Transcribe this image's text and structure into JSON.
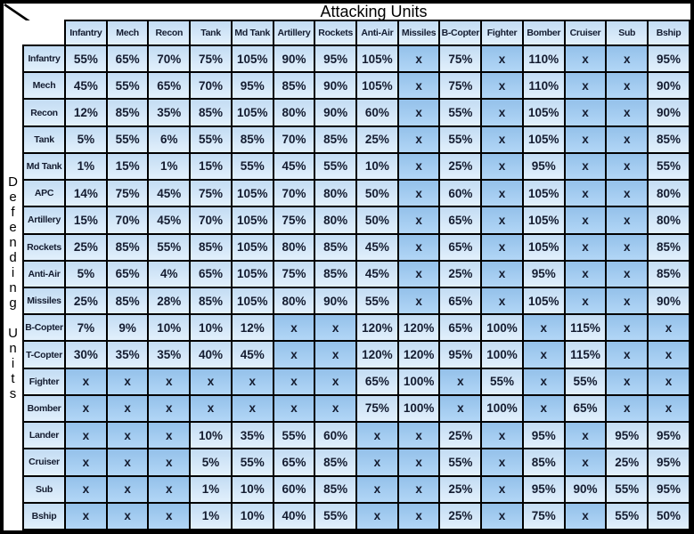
{
  "title": "Attacking Units",
  "side_label": "Defending Units",
  "no_attack_symbol": "x",
  "colors": {
    "frame_border": "#000000",
    "grid_line": "#000000",
    "cell_bg_top": "#c3dcf3",
    "cell_bg_bottom": "#e2f0fc",
    "x_cell_bg_top": "#94c1ea",
    "x_cell_bg_bottom": "#b2d6f6",
    "text": "#141c30",
    "background": "#ffffff"
  },
  "chart_data": {
    "type": "table",
    "title": "Attacking Units vs Defending Units damage chart",
    "columns": [
      "Infantry",
      "Mech",
      "Recon",
      "Tank",
      "Md Tank",
      "Artillery",
      "Rockets",
      "Anti-Air",
      "Missiles",
      "B-Copter",
      "Fighter",
      "Bomber",
      "Cruiser",
      "Sub",
      "Bship"
    ],
    "rows": [
      {
        "label": "Infantry",
        "values": [
          "55%",
          "65%",
          "70%",
          "75%",
          "105%",
          "90%",
          "95%",
          "105%",
          "x",
          "75%",
          "x",
          "110%",
          "x",
          "x",
          "95%"
        ]
      },
      {
        "label": "Mech",
        "values": [
          "45%",
          "55%",
          "65%",
          "70%",
          "95%",
          "85%",
          "90%",
          "105%",
          "x",
          "75%",
          "x",
          "110%",
          "x",
          "x",
          "90%"
        ]
      },
      {
        "label": "Recon",
        "values": [
          "12%",
          "85%",
          "35%",
          "85%",
          "105%",
          "80%",
          "90%",
          "60%",
          "x",
          "55%",
          "x",
          "105%",
          "x",
          "x",
          "90%"
        ]
      },
      {
        "label": "Tank",
        "values": [
          "5%",
          "55%",
          "6%",
          "55%",
          "85%",
          "70%",
          "85%",
          "25%",
          "x",
          "55%",
          "x",
          "105%",
          "x",
          "x",
          "85%"
        ]
      },
      {
        "label": "Md Tank",
        "values": [
          "1%",
          "15%",
          "1%",
          "15%",
          "55%",
          "45%",
          "55%",
          "10%",
          "x",
          "25%",
          "x",
          "95%",
          "x",
          "x",
          "55%"
        ]
      },
      {
        "label": "APC",
        "values": [
          "14%",
          "75%",
          "45%",
          "75%",
          "105%",
          "70%",
          "80%",
          "50%",
          "x",
          "60%",
          "x",
          "105%",
          "x",
          "x",
          "80%"
        ]
      },
      {
        "label": "Artillery",
        "values": [
          "15%",
          "70%",
          "45%",
          "70%",
          "105%",
          "75%",
          "80%",
          "50%",
          "x",
          "65%",
          "x",
          "105%",
          "x",
          "x",
          "80%"
        ]
      },
      {
        "label": "Rockets",
        "values": [
          "25%",
          "85%",
          "55%",
          "85%",
          "105%",
          "80%",
          "85%",
          "45%",
          "x",
          "65%",
          "x",
          "105%",
          "x",
          "x",
          "85%"
        ]
      },
      {
        "label": "Anti-Air",
        "values": [
          "5%",
          "65%",
          "4%",
          "65%",
          "105%",
          "75%",
          "85%",
          "45%",
          "x",
          "25%",
          "x",
          "95%",
          "x",
          "x",
          "85%"
        ]
      },
      {
        "label": "Missiles",
        "values": [
          "25%",
          "85%",
          "28%",
          "85%",
          "105%",
          "80%",
          "90%",
          "55%",
          "x",
          "65%",
          "x",
          "105%",
          "x",
          "x",
          "90%"
        ]
      },
      {
        "label": "B-Copter",
        "values": [
          "7%",
          "9%",
          "10%",
          "10%",
          "12%",
          "x",
          "x",
          "120%",
          "120%",
          "65%",
          "100%",
          "x",
          "115%",
          "x",
          "x"
        ]
      },
      {
        "label": "T-Copter",
        "values": [
          "30%",
          "35%",
          "35%",
          "40%",
          "45%",
          "x",
          "x",
          "120%",
          "120%",
          "95%",
          "100%",
          "x",
          "115%",
          "x",
          "x"
        ]
      },
      {
        "label": "Fighter",
        "values": [
          "x",
          "x",
          "x",
          "x",
          "x",
          "x",
          "x",
          "65%",
          "100%",
          "x",
          "55%",
          "x",
          "55%",
          "x",
          "x"
        ]
      },
      {
        "label": "Bomber",
        "values": [
          "x",
          "x",
          "x",
          "x",
          "x",
          "x",
          "x",
          "75%",
          "100%",
          "x",
          "100%",
          "x",
          "65%",
          "x",
          "x"
        ]
      },
      {
        "label": "Lander",
        "values": [
          "x",
          "x",
          "x",
          "10%",
          "35%",
          "55%",
          "60%",
          "x",
          "x",
          "25%",
          "x",
          "95%",
          "x",
          "95%",
          "95%"
        ]
      },
      {
        "label": "Cruiser",
        "values": [
          "x",
          "x",
          "x",
          "5%",
          "55%",
          "65%",
          "85%",
          "x",
          "x",
          "55%",
          "x",
          "85%",
          "x",
          "25%",
          "95%"
        ]
      },
      {
        "label": "Sub",
        "values": [
          "x",
          "x",
          "x",
          "1%",
          "10%",
          "60%",
          "85%",
          "x",
          "x",
          "25%",
          "x",
          "95%",
          "90%",
          "55%",
          "95%"
        ]
      },
      {
        "label": "Bship",
        "values": [
          "x",
          "x",
          "x",
          "1%",
          "10%",
          "40%",
          "55%",
          "x",
          "x",
          "25%",
          "x",
          "75%",
          "x",
          "55%",
          "50%"
        ]
      }
    ]
  }
}
